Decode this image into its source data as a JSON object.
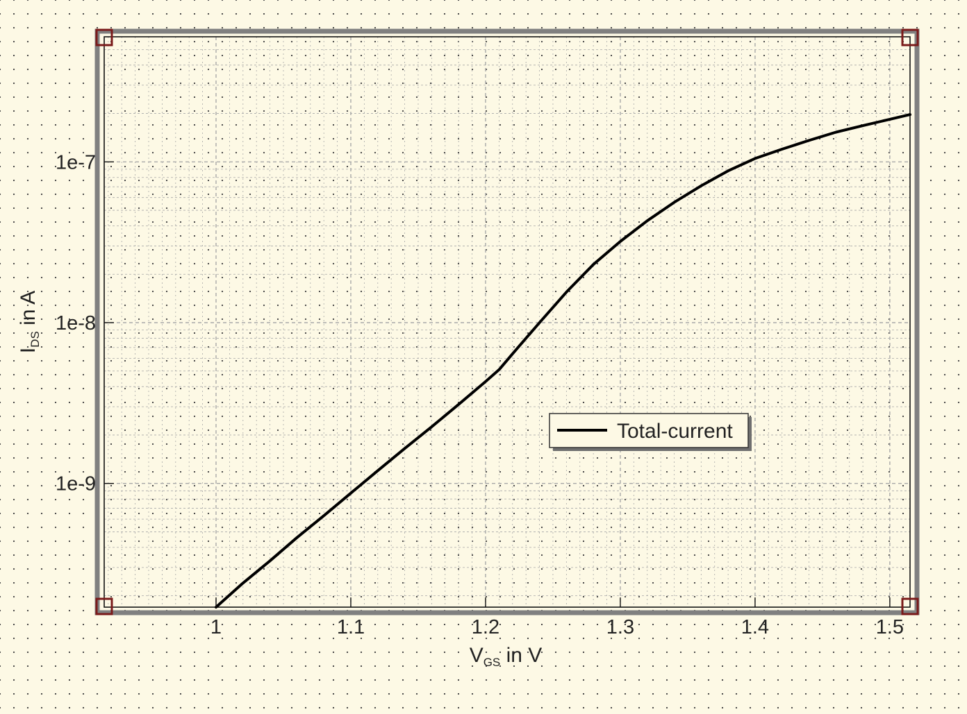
{
  "chart_data": {
    "type": "line",
    "xlabel": "V",
    "xlabel_subscript": "GS",
    "xlabel_suffix": " in V",
    "ylabel": "I",
    "ylabel_subscript": "DS",
    "ylabel_suffix": " in A",
    "xlim": [
      0.917,
      1.515
    ],
    "ylim": [
      1.7e-10,
      6e-07
    ],
    "yscale": "log",
    "grid": true,
    "legend": "center-right",
    "x_ticks": [
      1,
      1.1,
      1.2,
      1.3,
      1.4,
      1.5
    ],
    "x_tick_labels": [
      "1",
      "1.1",
      "1.2",
      "1.3",
      "1.4",
      "1.5"
    ],
    "y_ticks": [
      1e-09,
      1e-08,
      1e-07
    ],
    "y_tick_labels": [
      "1e-9",
      "1e-8",
      "1e-7"
    ],
    "series": [
      {
        "name": "Total-current",
        "color": "#000000",
        "x": [
          1.0,
          1.02,
          1.04,
          1.06,
          1.08,
          1.1,
          1.12,
          1.14,
          1.16,
          1.18,
          1.2,
          1.21,
          1.22,
          1.24,
          1.26,
          1.28,
          1.3,
          1.32,
          1.34,
          1.36,
          1.38,
          1.4,
          1.42,
          1.44,
          1.46,
          1.48,
          1.5,
          1.515
        ],
        "y": [
          1.7e-10,
          2.4e-10,
          3.3e-10,
          4.6e-10,
          6.3e-10,
          8.7e-10,
          1.2e-09,
          1.65e-09,
          2.25e-09,
          3.1e-09,
          4.3e-09,
          5.1e-09,
          6.4e-09,
          1e-08,
          1.55e-08,
          2.3e-08,
          3.2e-08,
          4.3e-08,
          5.6e-08,
          7.1e-08,
          8.8e-08,
          1.05e-07,
          1.2e-07,
          1.36e-07,
          1.53e-07,
          1.68e-07,
          1.84e-07,
          1.97e-07
        ]
      }
    ]
  },
  "handles": [
    {
      "name": "top-left-handle"
    },
    {
      "name": "top-right-handle"
    },
    {
      "name": "bottom-left-handle"
    },
    {
      "name": "bottom-right-handle"
    }
  ],
  "colors": {
    "background": "#fdf9e5",
    "frame": "#808080",
    "handle": "#7a1a1a",
    "grid": "#a8a8a8"
  }
}
